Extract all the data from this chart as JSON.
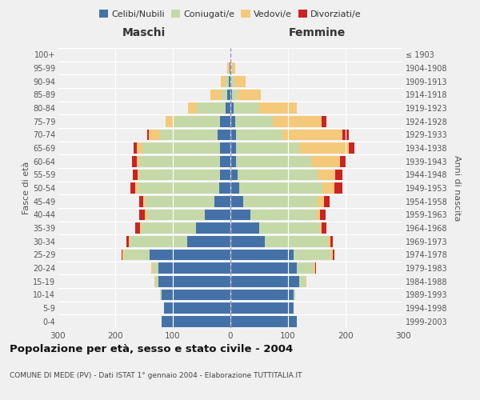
{
  "age_groups": [
    "0-4",
    "5-9",
    "10-14",
    "15-19",
    "20-24",
    "25-29",
    "30-34",
    "35-39",
    "40-44",
    "45-49",
    "50-54",
    "55-59",
    "60-64",
    "65-69",
    "70-74",
    "75-79",
    "80-84",
    "85-89",
    "90-94",
    "95-99",
    "100+"
  ],
  "birth_years": [
    "1999-2003",
    "1994-1998",
    "1989-1993",
    "1984-1988",
    "1979-1983",
    "1974-1978",
    "1969-1973",
    "1964-1968",
    "1959-1963",
    "1954-1958",
    "1949-1953",
    "1944-1948",
    "1939-1943",
    "1934-1938",
    "1929-1933",
    "1924-1928",
    "1919-1923",
    "1914-1918",
    "1909-1913",
    "1904-1908",
    "≤ 1903"
  ],
  "maschi": {
    "celibi": [
      120,
      115,
      120,
      125,
      125,
      140,
      75,
      60,
      45,
      28,
      20,
      18,
      18,
      18,
      22,
      18,
      9,
      5,
      3,
      1,
      0
    ],
    "coniugati": [
      0,
      0,
      2,
      5,
      10,
      45,
      100,
      95,
      100,
      120,
      140,
      140,
      140,
      135,
      100,
      80,
      50,
      10,
      5,
      1,
      0
    ],
    "vedovi": [
      0,
      0,
      0,
      2,
      2,
      2,
      2,
      2,
      3,
      3,
      5,
      3,
      5,
      10,
      20,
      15,
      15,
      20,
      8,
      3,
      0
    ],
    "divorziati": [
      0,
      0,
      0,
      0,
      0,
      2,
      3,
      8,
      10,
      8,
      8,
      8,
      8,
      5,
      2,
      0,
      0,
      0,
      0,
      0,
      0
    ]
  },
  "femmine": {
    "nubili": [
      115,
      110,
      110,
      120,
      115,
      110,
      60,
      50,
      35,
      22,
      15,
      12,
      10,
      10,
      10,
      8,
      5,
      3,
      2,
      1,
      0
    ],
    "coniugate": [
      0,
      0,
      2,
      10,
      30,
      65,
      110,
      105,
      115,
      130,
      145,
      140,
      130,
      110,
      80,
      65,
      45,
      10,
      5,
      2,
      0
    ],
    "vedove": [
      0,
      0,
      0,
      2,
      2,
      3,
      3,
      3,
      5,
      10,
      20,
      30,
      50,
      85,
      105,
      85,
      65,
      40,
      20,
      5,
      0
    ],
    "divorziate": [
      0,
      0,
      0,
      0,
      2,
      3,
      5,
      8,
      10,
      10,
      15,
      12,
      10,
      10,
      10,
      8,
      0,
      0,
      0,
      0,
      0
    ]
  },
  "colors": {
    "celibi": "#4472a8",
    "coniugati": "#c5d9a8",
    "vedovi": "#f5c97a",
    "divorziati": "#cc2222"
  },
  "title": "Popolazione per età, sesso e stato civile - 2004",
  "subtitle": "COMUNE DI MEDE (PV) - Dati ISTAT 1° gennaio 2004 - Elaborazione TUTTITALIA.IT",
  "xlabel_left": "Maschi",
  "xlabel_right": "Femmine",
  "ylabel_left": "Fasce di età",
  "ylabel_right": "Anni di nascita",
  "xlim": 300,
  "background_color": "#f0f0f0"
}
